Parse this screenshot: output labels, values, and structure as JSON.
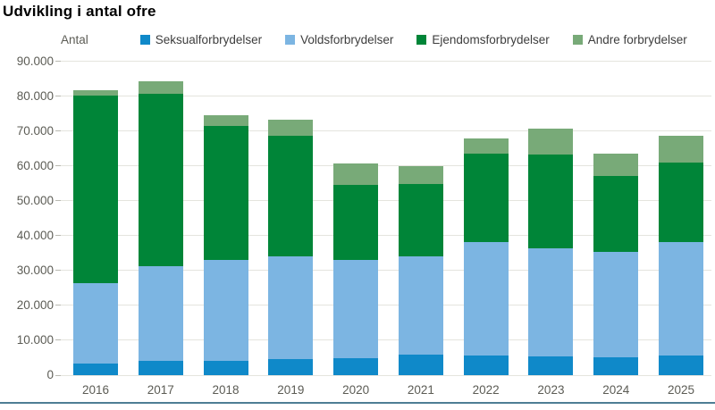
{
  "title": "Udvikling i antal ofre",
  "chart_data": {
    "type": "bar",
    "stacked": true,
    "title": "Udvikling i antal ofre",
    "ylabel": "Antal",
    "xlabel": "",
    "ylim": [
      0,
      90000
    ],
    "ytick_step": 10000,
    "ytick_labels": [
      "0",
      "10.000",
      "20.000",
      "30.000",
      "40.000",
      "50.000",
      "60.000",
      "70.000",
      "80.000",
      "90.000"
    ],
    "grid": true,
    "legend_position": "top",
    "categories": [
      "2016",
      "2017",
      "2018",
      "2019",
      "2020",
      "2021",
      "2022",
      "2023",
      "2024",
      "2025"
    ],
    "series": [
      {
        "name": "Seksualforbrydelser",
        "color": "#0f89c9",
        "values": [
          3400,
          4000,
          4200,
          4500,
          4800,
          5800,
          5600,
          5400,
          5200,
          5700
        ]
      },
      {
        "name": "Voldsforbrydelser",
        "color": "#7cb5e2",
        "values": [
          23100,
          27400,
          29000,
          29500,
          28400,
          28300,
          32500,
          31100,
          30100,
          32500
        ]
      },
      {
        "name": "Ejendomsforbrydelser",
        "color": "#008538",
        "values": [
          53800,
          49400,
          38400,
          34600,
          21400,
          20700,
          25400,
          26900,
          22000,
          22900
        ]
      },
      {
        "name": "Andre forbrydelser",
        "color": "#78aa78",
        "values": [
          1400,
          3600,
          3100,
          4700,
          6200,
          5200,
          4500,
          7400,
          6400,
          7500
        ]
      }
    ],
    "totals": [
      81700,
      84400,
      74700,
      73300,
      60800,
      60000,
      68000,
      70800,
      63700,
      68600
    ]
  },
  "colors": {
    "gridline": "#e4e4de",
    "tick": "#b9b9b1",
    "axis_text": "#5c5c55",
    "legend_text": "#3d3d3d",
    "bottom_border": "#4e7e94"
  }
}
